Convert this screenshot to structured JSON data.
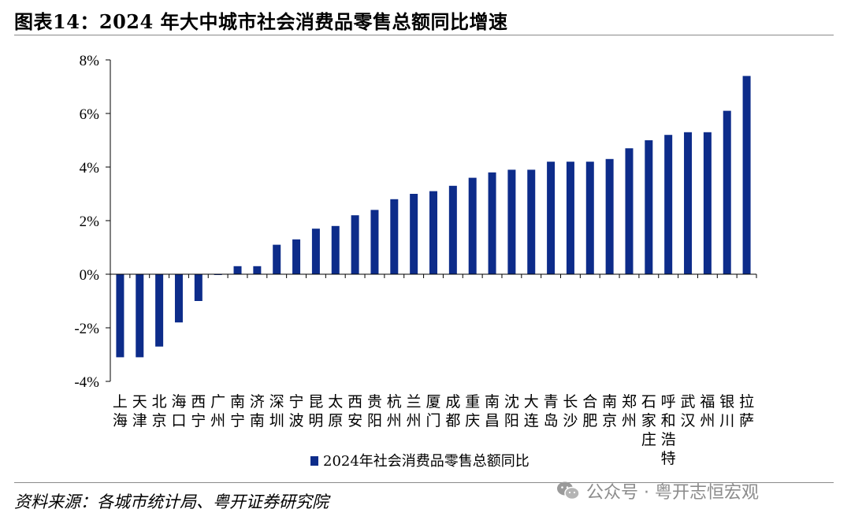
{
  "title": "图表14：2024 年大中城市社会消费品零售总额同比增速",
  "source": "资料来源：各城市统计局、粤开证券研究院",
  "watermark": "公众号 · 粤开志恒宏观",
  "colors": {
    "bar": "#0d2c8a",
    "axis": "#000000",
    "rule": "#8a8a8a"
  },
  "chart_data": {
    "type": "bar",
    "series_name": "2024年社会消费品零售总额同比",
    "categories": [
      "上海",
      "天津",
      "北京",
      "海口",
      "西宁",
      "广州",
      "南宁",
      "济南",
      "深圳",
      "宁波",
      "昆明",
      "太原",
      "西安",
      "贵阳",
      "杭州",
      "兰州",
      "厦门",
      "成都",
      "重庆",
      "南昌",
      "沈阳",
      "大连",
      "青岛",
      "长沙",
      "合肥",
      "南京",
      "郑州",
      "石家庄",
      "呼和浩特",
      "武汉",
      "福州",
      "银川",
      "拉萨"
    ],
    "values": [
      -3.1,
      -3.1,
      -2.7,
      -1.8,
      -1.0,
      0.0,
      0.3,
      0.3,
      1.1,
      1.3,
      1.7,
      1.8,
      2.2,
      2.4,
      2.8,
      3.0,
      3.1,
      3.3,
      3.6,
      3.8,
      3.9,
      3.9,
      4.2,
      4.2,
      4.2,
      4.3,
      4.7,
      5.0,
      5.2,
      5.3,
      5.3,
      6.1,
      7.4
    ],
    "ylim": [
      -4,
      8
    ],
    "yticks": [
      -4,
      -2,
      0,
      2,
      4,
      6,
      8
    ],
    "ytick_labels": [
      "-4%",
      "-2%",
      "0%",
      "2%",
      "4%",
      "6%",
      "8%"
    ],
    "xlabel": "",
    "ylabel": "",
    "legend": "bottom-center"
  }
}
